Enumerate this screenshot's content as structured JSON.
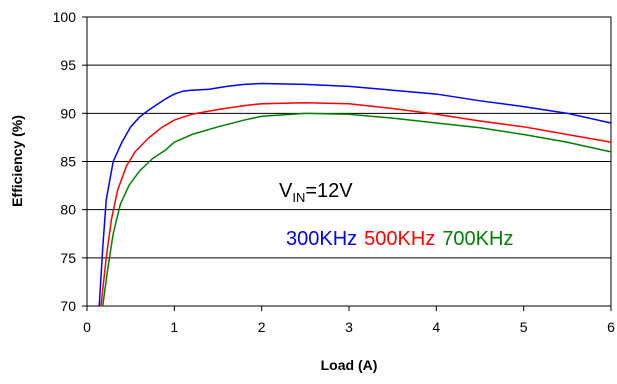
{
  "chart_data": {
    "type": "line",
    "title": "",
    "xlabel": "Load (A)",
    "ylabel": "Efficiency (%)",
    "xlim": [
      0,
      6
    ],
    "ylim": [
      70,
      100
    ],
    "x_ticks": [
      0,
      1,
      2,
      3,
      4,
      5,
      6
    ],
    "y_ticks": [
      70,
      75,
      80,
      85,
      90,
      95,
      100
    ],
    "x_tick_labels": [
      "0",
      "1",
      "2",
      "3",
      "4",
      "5",
      "6"
    ],
    "y_tick_labels": [
      "70",
      "75",
      "80",
      "85",
      "90",
      "95",
      "100"
    ],
    "grid": "horizontal",
    "annotations": {
      "vin_prefix": "V",
      "vin_sub": "IN",
      "vin_value": "=12V"
    },
    "series": [
      {
        "name": "300KHz",
        "color": "#0000ff",
        "points": [
          [
            0.14,
            70
          ],
          [
            0.18,
            76
          ],
          [
            0.22,
            81
          ],
          [
            0.3,
            85
          ],
          [
            0.4,
            87
          ],
          [
            0.5,
            88.6
          ],
          [
            0.6,
            89.6
          ],
          [
            0.7,
            90.3
          ],
          [
            0.8,
            90.9
          ],
          [
            0.9,
            91.5
          ],
          [
            1.0,
            92.0
          ],
          [
            1.1,
            92.3
          ],
          [
            1.2,
            92.4
          ],
          [
            1.4,
            92.5
          ],
          [
            1.6,
            92.8
          ],
          [
            1.8,
            93.0
          ],
          [
            2.0,
            93.1
          ],
          [
            2.5,
            93.0
          ],
          [
            3.0,
            92.8
          ],
          [
            3.5,
            92.4
          ],
          [
            4.0,
            92.0
          ],
          [
            4.5,
            91.3
          ],
          [
            5.0,
            90.7
          ],
          [
            5.5,
            90.0
          ],
          [
            6.0,
            89.0
          ]
        ]
      },
      {
        "name": "500KHz",
        "color": "#ff0000",
        "points": [
          [
            0.16,
            70
          ],
          [
            0.22,
            75
          ],
          [
            0.28,
            79
          ],
          [
            0.35,
            82
          ],
          [
            0.45,
            84.5
          ],
          [
            0.55,
            86
          ],
          [
            0.7,
            87.4
          ],
          [
            0.85,
            88.5
          ],
          [
            1.0,
            89.3
          ],
          [
            1.2,
            89.9
          ],
          [
            1.5,
            90.4
          ],
          [
            1.8,
            90.8
          ],
          [
            2.0,
            91.0
          ],
          [
            2.5,
            91.1
          ],
          [
            3.0,
            91.0
          ],
          [
            3.5,
            90.5
          ],
          [
            4.0,
            89.9
          ],
          [
            4.5,
            89.2
          ],
          [
            5.0,
            88.6
          ],
          [
            5.5,
            87.8
          ],
          [
            6.0,
            87.0
          ]
        ]
      },
      {
        "name": "700KHz",
        "color": "#008000",
        "points": [
          [
            0.18,
            70
          ],
          [
            0.24,
            74
          ],
          [
            0.3,
            77.5
          ],
          [
            0.38,
            80.5
          ],
          [
            0.48,
            82.5
          ],
          [
            0.6,
            84
          ],
          [
            0.75,
            85.3
          ],
          [
            0.9,
            86.2
          ],
          [
            1.0,
            87.0
          ],
          [
            1.2,
            87.8
          ],
          [
            1.5,
            88.6
          ],
          [
            1.8,
            89.3
          ],
          [
            2.0,
            89.7
          ],
          [
            2.5,
            90.0
          ],
          [
            3.0,
            89.9
          ],
          [
            3.5,
            89.5
          ],
          [
            4.0,
            89.0
          ],
          [
            4.5,
            88.5
          ],
          [
            5.0,
            87.8
          ],
          [
            5.5,
            87.0
          ],
          [
            6.0,
            86.0
          ]
        ]
      }
    ]
  }
}
